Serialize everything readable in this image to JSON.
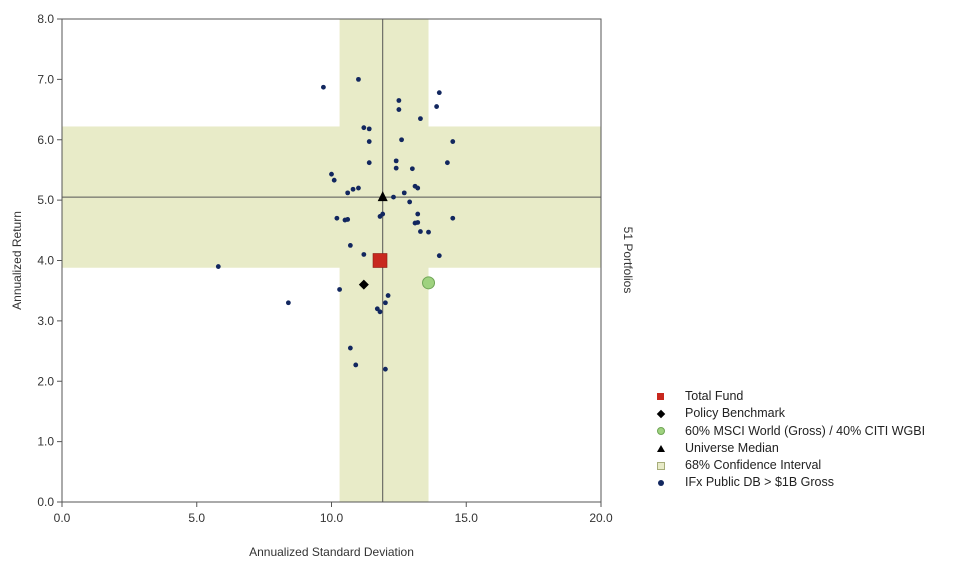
{
  "chart_data": {
    "type": "scatter",
    "xlabel": "Annualized Standard Deviation",
    "ylabel": "Annualized Return",
    "right_label": "51 Portfolios",
    "xlim": [
      0,
      20
    ],
    "ylim": [
      0,
      8
    ],
    "x_ticks": [
      "0.0",
      "5.0",
      "10.0",
      "15.0",
      "20.0"
    ],
    "y_ticks": [
      "0.0",
      "1.0",
      "2.0",
      "3.0",
      "4.0",
      "5.0",
      "6.0",
      "7.0",
      "8.0"
    ],
    "grid": false,
    "legend_position": "bottom-right",
    "confidence_interval": {
      "x": [
        10.3,
        13.6
      ],
      "y": [
        3.88,
        6.22
      ]
    },
    "median_lines": {
      "x": 11.9,
      "y": 5.05
    },
    "series": [
      {
        "name": "Total Fund",
        "marker": "square",
        "color": "#c8281e",
        "points": [
          [
            11.8,
            4.0
          ]
        ]
      },
      {
        "name": "Policy Benchmark",
        "marker": "diamond",
        "color": "#000000",
        "points": [
          [
            11.2,
            3.6
          ]
        ]
      },
      {
        "name": "60% MSCI World (Gross) / 40% CITI WGBI",
        "marker": "circle",
        "color": "#9fd27f",
        "points": [
          [
            13.6,
            3.63
          ]
        ]
      },
      {
        "name": "Universe Median",
        "marker": "triangle",
        "color": "#000000",
        "points": [
          [
            11.9,
            5.05
          ]
        ]
      },
      {
        "name": "68% Confidence Interval",
        "marker": "area",
        "color": "#e8ebc8",
        "points": []
      },
      {
        "name": "IFx Public DB > $1B Gross",
        "marker": "dot",
        "color": "#12275f",
        "points": [
          [
            5.8,
            3.9
          ],
          [
            8.4,
            3.3
          ],
          [
            9.7,
            6.87
          ],
          [
            10.0,
            5.43
          ],
          [
            11.0,
            7.0
          ],
          [
            10.1,
            5.33
          ],
          [
            10.2,
            4.7
          ],
          [
            10.3,
            3.52
          ],
          [
            10.5,
            4.67
          ],
          [
            10.6,
            4.68
          ],
          [
            10.6,
            5.12
          ],
          [
            10.8,
            5.18
          ],
          [
            11.0,
            5.2
          ],
          [
            10.7,
            4.25
          ],
          [
            11.2,
            6.2
          ],
          [
            11.4,
            6.18
          ],
          [
            11.4,
            5.97
          ],
          [
            11.4,
            5.62
          ],
          [
            11.2,
            4.1
          ],
          [
            11.8,
            4.73
          ],
          [
            11.9,
            4.77
          ],
          [
            12.0,
            3.3
          ],
          [
            11.7,
            3.2
          ],
          [
            11.8,
            3.15
          ],
          [
            10.7,
            2.55
          ],
          [
            10.9,
            2.27
          ],
          [
            12.0,
            2.2
          ],
          [
            12.1,
            3.42
          ],
          [
            12.3,
            5.05
          ],
          [
            12.4,
            5.53
          ],
          [
            12.4,
            5.65
          ],
          [
            12.5,
            6.65
          ],
          [
            12.5,
            6.5
          ],
          [
            12.6,
            6.0
          ],
          [
            12.7,
            5.12
          ],
          [
            12.9,
            4.97
          ],
          [
            13.0,
            5.52
          ],
          [
            13.1,
            5.23
          ],
          [
            13.2,
            5.2
          ],
          [
            13.2,
            4.63
          ],
          [
            13.1,
            4.62
          ],
          [
            13.2,
            4.77
          ],
          [
            13.3,
            4.48
          ],
          [
            13.3,
            6.35
          ],
          [
            13.6,
            4.47
          ],
          [
            13.9,
            6.55
          ],
          [
            14.0,
            6.78
          ],
          [
            14.0,
            4.08
          ],
          [
            14.3,
            5.62
          ],
          [
            14.5,
            5.97
          ],
          [
            14.5,
            4.7
          ]
        ]
      }
    ]
  }
}
